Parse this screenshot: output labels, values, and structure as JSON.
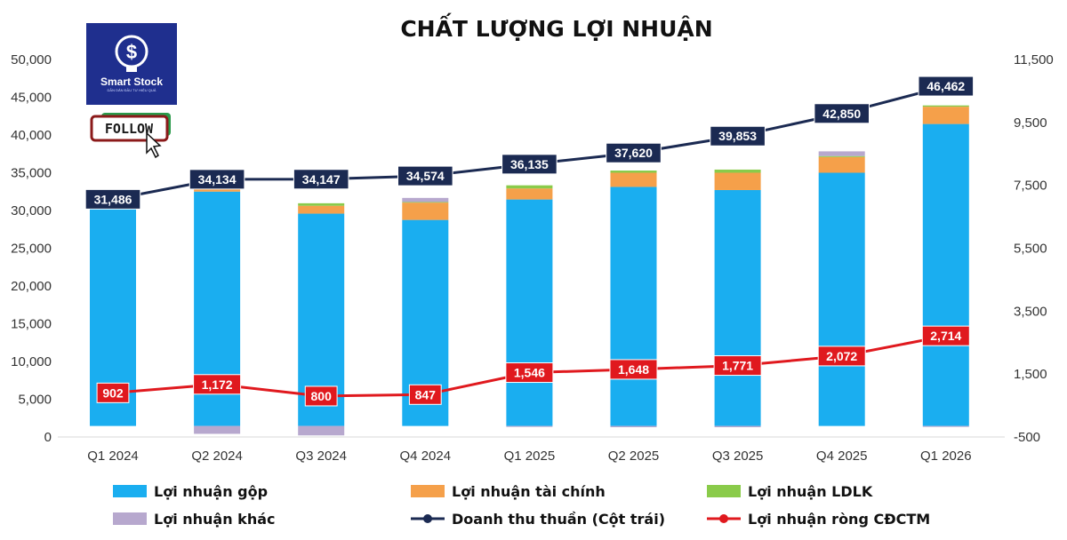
{
  "logo": {
    "name": "Smart Stock",
    "tagline": "DẪN DẮN ĐẦU TƯ HIỆU QUẢ",
    "follow_label": "FOLLOW"
  },
  "colors": {
    "gross": "#1AAEF0",
    "financial": "#F5A04A",
    "associates": "#8ACB4A",
    "other": "#B7A8CE",
    "revenue_line": "#1B2A52",
    "net_profit_line": "#E0191E"
  },
  "chart_data": {
    "type": "bar",
    "stacked": true,
    "title": "CHẤT LƯỢNG LỢI NHUẬN",
    "categories": [
      "Q1 2024",
      "Q2 2024",
      "Q3 2024",
      "Q4 2024",
      "Q1 2025",
      "Q2 2025",
      "Q3 2025",
      "Q4 2025",
      "Q1 2026"
    ],
    "left_axis": {
      "ylim": [
        0,
        50000
      ],
      "ticks": [
        "0",
        "5,000",
        "10,000",
        "15,000",
        "20,000",
        "25,000",
        "30,000",
        "35,000",
        "40,000",
        "45,000",
        "50,000"
      ]
    },
    "right_axis": {
      "ylim": [
        -500,
        11500
      ],
      "ticks": [
        "-500",
        "1,500",
        "3,500",
        "5,500",
        "7,500",
        "9,500",
        "11,500"
      ]
    },
    "series": [
      {
        "name": "Lợi nhuận gộp",
        "axis": "right",
        "base": [
          -150,
          -150,
          -150,
          -150,
          -150,
          -150,
          -150,
          -150,
          -150
        ],
        "values": [
          6900,
          7450,
          6750,
          6550,
          7200,
          7600,
          7500,
          8050,
          9600
        ]
      },
      {
        "name": "Lợi nhuận tài chính",
        "axis": "right",
        "values": [
          150,
          200,
          250,
          550,
          350,
          450,
          550,
          500,
          550
        ]
      },
      {
        "name": "Lợi nhuận LDLK",
        "axis": "right",
        "values": [
          30,
          60,
          80,
          20,
          100,
          70,
          100,
          30,
          40
        ]
      },
      {
        "name": "Lợi nhuận khác",
        "axis": "right",
        "values": [
          20,
          -250,
          -300,
          130,
          -30,
          -40,
          -40,
          150,
          -30
        ]
      },
      {
        "name": "Doanh thu thuần (Cột trái)",
        "type": "line",
        "axis": "left",
        "values": [
          31486,
          34134,
          34147,
          34574,
          36135,
          37620,
          39853,
          42850,
          46462
        ],
        "labels": [
          "31,486",
          "34,134",
          "34,147",
          "34,574",
          "36,135",
          "37,620",
          "39,853",
          "42,850",
          "46,462"
        ]
      },
      {
        "name": "Lợi nhuận ròng CĐCTM",
        "type": "line",
        "axis": "right",
        "values": [
          902,
          1172,
          800,
          847,
          1546,
          1648,
          1771,
          2072,
          2714
        ],
        "labels": [
          "902",
          "1,172",
          "800",
          "847",
          "1,546",
          "1,648",
          "1,771",
          "2,072",
          "2,714"
        ]
      }
    ],
    "legend": [
      "Lợi nhuận gộp",
      "Lợi nhuận tài chính",
      "Lợi nhuận LDLK",
      "Lợi nhuận khác",
      "Doanh thu thuần (Cột trái)",
      "Lợi nhuận ròng CĐCTM"
    ],
    "grid": false,
    "legend_position": "bottom"
  }
}
